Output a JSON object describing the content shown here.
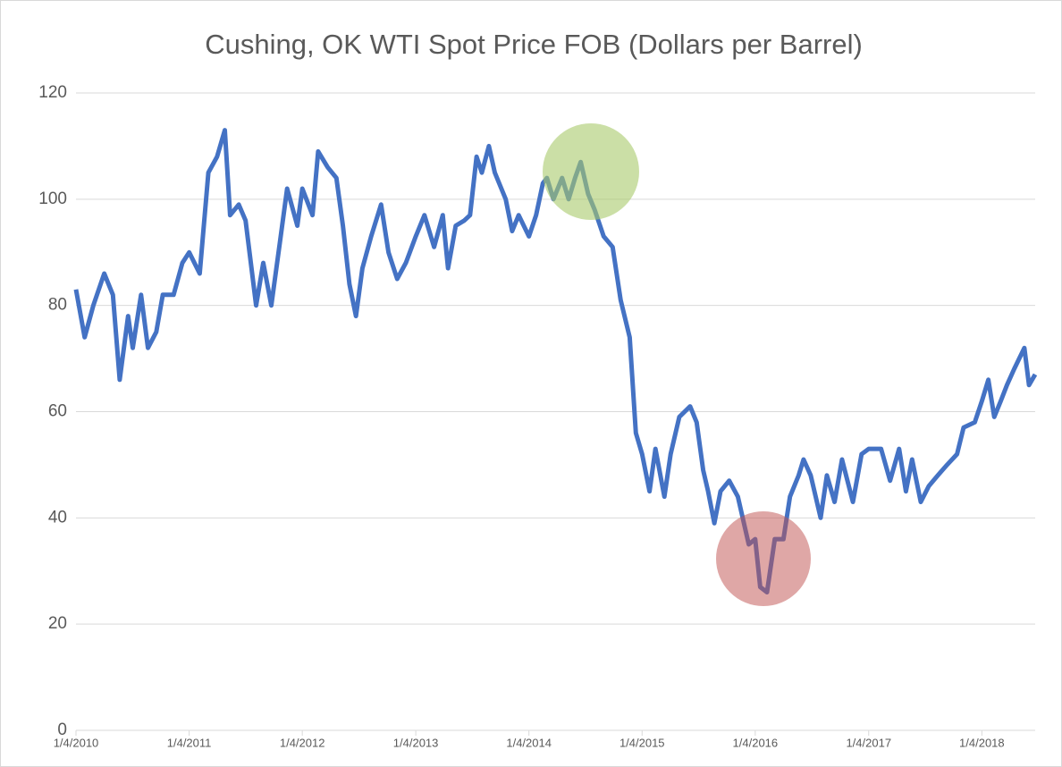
{
  "chart_data": {
    "type": "line",
    "title": "Cushing, OK WTI Spot Price FOB (Dollars per Barrel)",
    "color": "#4472c4",
    "grid": true,
    "x": [
      "1/4/2010",
      "2/1/2010",
      "3/1/2010",
      "4/5/2010",
      "5/3/2010",
      "5/25/2010",
      "6/21/2010",
      "7/6/2010",
      "8/2/2010",
      "8/24/2010",
      "9/20/2010",
      "10/11/2010",
      "11/15/2010",
      "12/13/2010",
      "1/4/2011",
      "2/7/2011",
      "3/7/2011",
      "4/4/2011",
      "4/29/2011",
      "5/16/2011",
      "6/13/2011",
      "7/5/2011",
      "8/8/2011",
      "8/31/2011",
      "9/26/2011",
      "10/24/2011",
      "11/16/2011",
      "12/19/2011",
      "1/4/2012",
      "2/6/2012",
      "2/24/2012",
      "3/26/2012",
      "4/23/2012",
      "5/14/2012",
      "6/4/2012",
      "6/25/2012",
      "7/16/2012",
      "8/13/2012",
      "9/14/2012",
      "10/8/2012",
      "11/5/2012",
      "12/3/2012",
      "1/4/2013",
      "2/1/2013",
      "3/4/2013",
      "4/1/2013",
      "4/18/2013",
      "5/13/2013",
      "6/10/2013",
      "6/28/2013",
      "7/19/2013",
      "8/5/2013",
      "8/28/2013",
      "9/16/2013",
      "10/21/2013",
      "11/11/2013",
      "12/2/2013",
      "1/4/2014",
      "1/27/2014",
      "2/18/2014",
      "3/3/2014",
      "3/24/2014",
      "4/21/2014",
      "5/12/2014",
      "6/2/2014",
      "6/20/2014",
      "7/14/2014",
      "8/4/2014",
      "9/2/2014",
      "10/1/2014",
      "10/27/2014",
      "11/25/2014",
      "12/15/2014",
      "1/4/2015",
      "1/28/2015",
      "2/16/2015",
      "3/17/2015",
      "4/6/2015",
      "5/4/2015",
      "6/8/2015",
      "6/29/2015",
      "7/20/2015",
      "8/5/2015",
      "8/25/2015",
      "9/14/2015",
      "10/12/2015",
      "11/9/2015",
      "12/14/2015",
      "1/4/2016",
      "1/20/2016",
      "2/11/2016",
      "3/7/2016",
      "4/4/2016",
      "4/25/2016",
      "5/23/2016",
      "6/8/2016",
      "7/1/2016",
      "8/2/2016",
      "8/22/2016",
      "9/16/2016",
      "10/10/2016",
      "11/14/2016",
      "12/12/2016",
      "1/4/2017",
      "2/13/2017",
      "3/14/2017",
      "4/12/2017",
      "5/4/2017",
      "5/24/2017",
      "6/21/2017",
      "7/17/2017",
      "8/15/2017",
      "9/14/2017",
      "10/16/2017",
      "11/6/2017",
      "12/12/2017",
      "1/4/2018",
      "1/25/2018",
      "2/13/2018",
      "3/6/2018",
      "3/26/2018",
      "4/18/2018",
      "5/21/2018",
      "6/5/2018",
      "6/25/2018"
    ],
    "values": [
      83,
      74,
      80,
      86,
      82,
      66,
      78,
      72,
      82,
      72,
      75,
      82,
      82,
      88,
      90,
      86,
      105,
      108,
      113,
      97,
      99,
      96,
      80,
      88,
      80,
      92,
      102,
      95,
      102,
      97,
      109,
      106,
      104,
      95,
      84,
      78,
      87,
      93,
      99,
      90,
      85,
      88,
      93,
      97,
      91,
      97,
      87,
      95,
      96,
      97,
      108,
      105,
      110,
      105,
      100,
      94,
      97,
      93,
      97,
      103,
      104,
      100,
      104,
      100,
      104,
      107,
      101,
      98,
      93,
      91,
      81,
      74,
      56,
      52,
      45,
      53,
      44,
      52,
      59,
      61,
      58,
      49,
      45,
      39,
      45,
      47,
      44,
      35,
      36,
      27,
      26,
      36,
      36,
      44,
      48,
      51,
      48,
      40,
      48,
      43,
      51,
      43,
      52,
      53,
      53,
      47,
      53,
      45,
      51,
      43,
      46,
      48,
      50,
      52,
      57,
      58,
      62,
      66,
      59,
      62,
      65,
      68,
      72,
      65,
      67
    ],
    "xlim": [
      "1/4/2010",
      "6/25/2018"
    ],
    "xticks": [
      "1/4/2010",
      "1/4/2011",
      "1/4/2012",
      "1/4/2013",
      "1/4/2014",
      "1/4/2015",
      "1/4/2016",
      "1/4/2017",
      "1/4/2018"
    ],
    "ylim": [
      0,
      120
    ],
    "yticks": [
      0,
      20,
      40,
      60,
      80,
      100,
      120
    ]
  }
}
